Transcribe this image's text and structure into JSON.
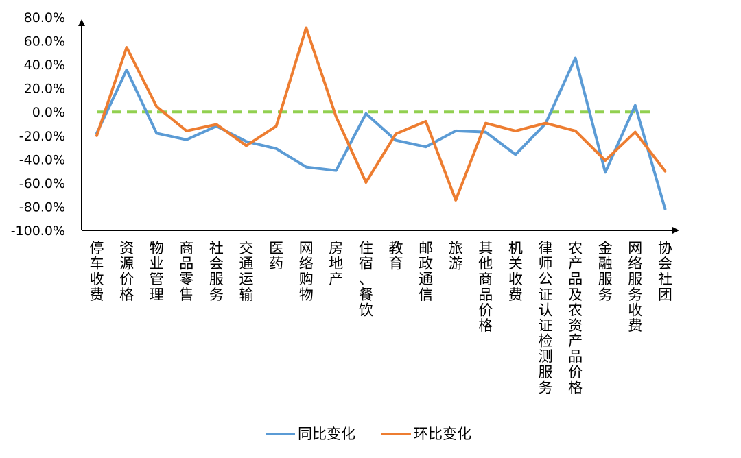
{
  "chart_data": {
    "type": "line",
    "title": "",
    "xlabel": "",
    "ylabel": "",
    "ylim": [
      -100,
      80
    ],
    "y_ticks": [
      80,
      60,
      40,
      20,
      0,
      -20,
      -40,
      -60,
      -80,
      -100
    ],
    "y_tick_labels": [
      "80.0%",
      "60.0%",
      "40.0%",
      "20.0%",
      "0.0%",
      "-20.0%",
      "-40.0%",
      "-60.0%",
      "-80.0%",
      "-100.0%"
    ],
    "categories": [
      "停车收费",
      "资源价格",
      "物业管理",
      "商品零售",
      "社会服务",
      "交通运输",
      "医药",
      "网络购物",
      "房地产",
      "住宿、餐饮",
      "教育",
      "邮政通信",
      "旅游",
      "其他商品价格",
      "机关收费",
      "律师公证认证检测服务",
      "农产品及农资产品价格",
      "金融服务",
      "网络服务收费",
      "协会社团"
    ],
    "series": [
      {
        "name": "同比变化",
        "color": "#5B9BD5",
        "values": [
          -18,
          35.5,
          -18,
          -23.5,
          -12,
          -25,
          -31,
          -46.5,
          -49.5,
          -1.5,
          -24,
          -29.5,
          -16,
          -17,
          -36,
          -10,
          45.5,
          -51,
          5.5,
          -82
        ]
      },
      {
        "name": "环比变化",
        "color": "#ED7D31",
        "values": [
          -20,
          54.5,
          4.5,
          -16,
          -10.5,
          -28.5,
          -12,
          71,
          -4,
          -59.5,
          -18.5,
          -8,
          -74.5,
          -9.5,
          -16,
          -9.5,
          -16,
          -41,
          -17,
          -50
        ]
      }
    ],
    "reference_line": {
      "value": 0,
      "color": "#92D050",
      "style": "dashed"
    },
    "legend_position": "bottom",
    "grid": false
  }
}
